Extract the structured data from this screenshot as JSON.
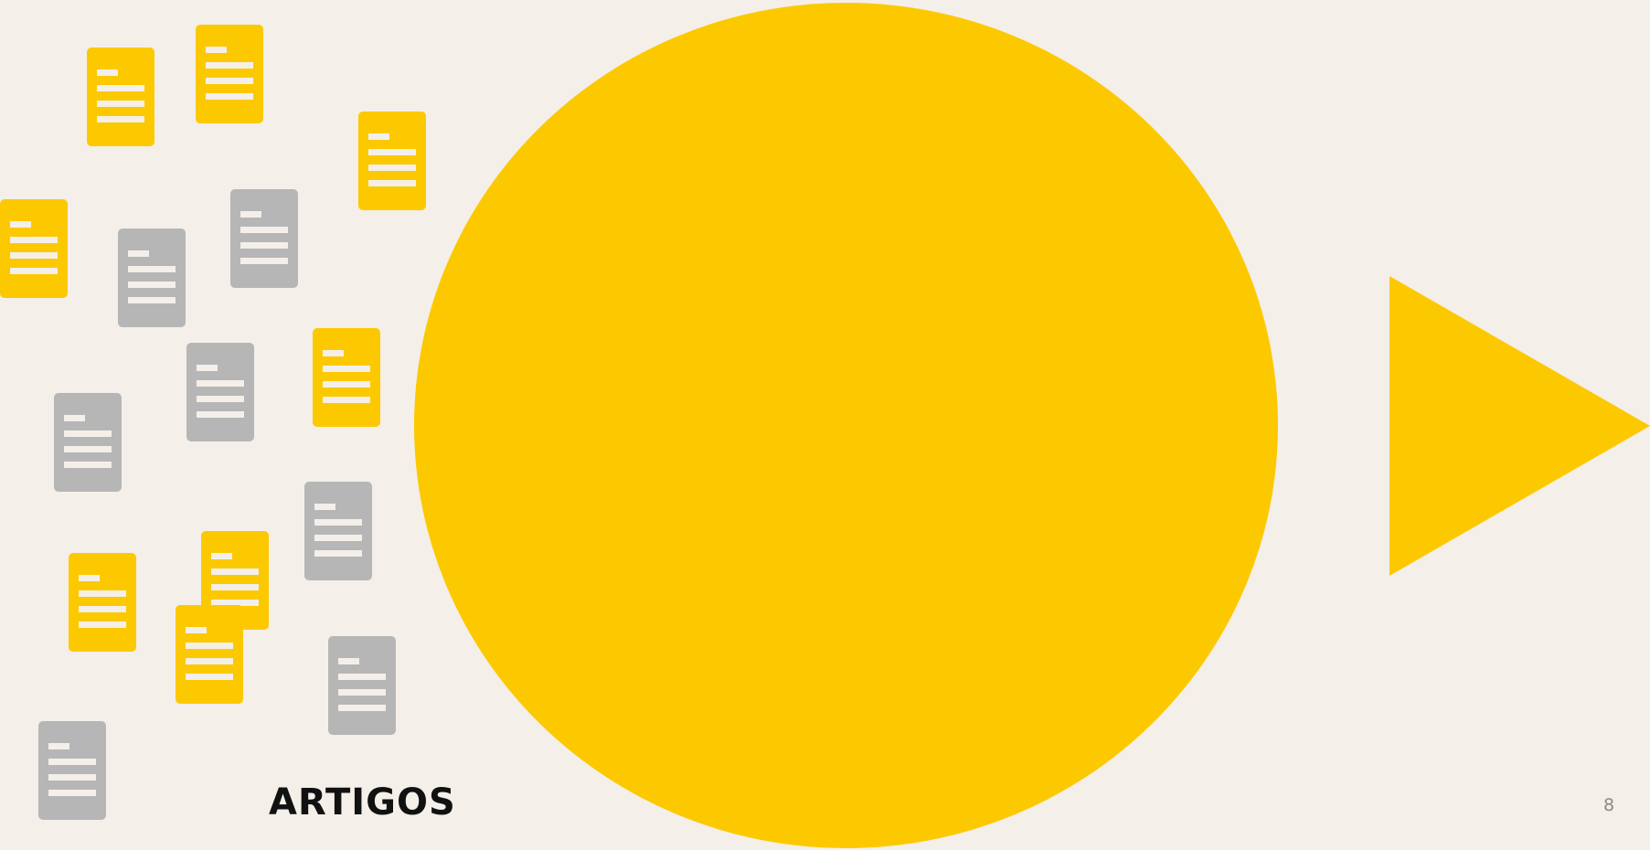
{
  "slide": {
    "title": "ARTIGOS",
    "page_number": "8"
  },
  "colors": {
    "background": "#F4EFE9",
    "accent": "#FCC900",
    "neutral": "#B6B6B6"
  },
  "icons": {
    "document": "document-icon",
    "shape_circle": "circle-shape",
    "shape_arrow": "triangle-arrow-icon"
  }
}
